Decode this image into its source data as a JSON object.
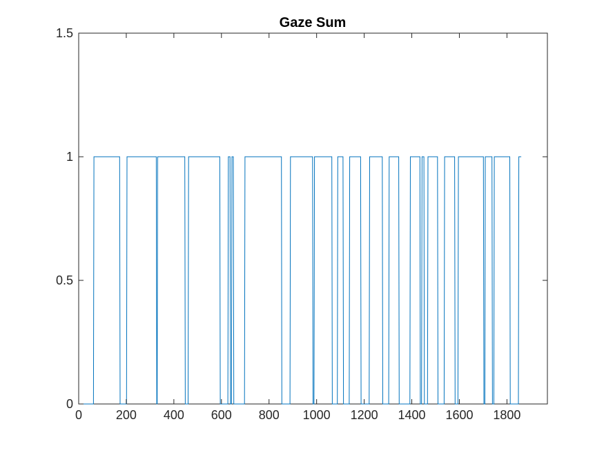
{
  "colors": {
    "background": "#ffffff",
    "axes": "#262626",
    "series": "#0072bd"
  },
  "chart_data": {
    "type": "line",
    "title": "Gaze Sum",
    "xlabel": "",
    "ylabel": "",
    "xlim": [
      0,
      1970
    ],
    "ylim": [
      0,
      1.5
    ],
    "xticks": [
      0,
      200,
      400,
      600,
      800,
      1000,
      1200,
      1400,
      1600,
      1800
    ],
    "xtick_labels": [
      "0",
      "200",
      "400",
      "600",
      "800",
      "1000",
      "1200",
      "1400",
      "1600",
      "1800"
    ],
    "yticks": [
      0,
      0.5,
      1,
      1.5
    ],
    "ytick_labels": [
      "0",
      "0.5",
      "1",
      "1.5"
    ],
    "grid": false,
    "legend": "none",
    "series": [
      {
        "interpolation": "linear",
        "x": [
          1,
          62,
          64,
          172,
          174,
          201,
          203,
          326,
          328,
          330,
          332,
          446,
          448,
          460,
          462,
          593,
          595,
          627,
          629,
          636,
          638,
          642,
          644,
          650,
          652,
          697,
          699,
          852,
          854,
          888,
          890,
          983,
          985,
          989,
          991,
          1064,
          1066,
          1087,
          1089,
          1111,
          1113,
          1137,
          1139,
          1185,
          1187,
          1221,
          1223,
          1276,
          1278,
          1303,
          1305,
          1345,
          1347,
          1392,
          1394,
          1434,
          1436,
          1441,
          1443,
          1451,
          1453,
          1466,
          1468,
          1508,
          1510,
          1536,
          1538,
          1580,
          1582,
          1594,
          1596,
          1701,
          1703,
          1707,
          1709,
          1737,
          1739,
          1745,
          1747,
          1812,
          1814,
          1848,
          1850,
          1860
        ],
        "y": [
          0,
          0,
          1,
          1,
          0,
          0,
          1,
          1,
          0,
          0,
          1,
          1,
          0,
          0,
          1,
          1,
          0,
          0,
          1,
          1,
          0,
          0,
          1,
          1,
          0,
          0,
          1,
          1,
          0,
          0,
          1,
          1,
          0,
          0,
          1,
          1,
          0,
          0,
          1,
          1,
          0,
          0,
          1,
          1,
          0,
          0,
          1,
          1,
          0,
          0,
          1,
          1,
          0,
          0,
          1,
          1,
          0,
          0,
          1,
          1,
          0,
          0,
          1,
          1,
          0,
          0,
          1,
          1,
          0,
          0,
          1,
          1,
          0,
          0,
          1,
          1,
          0,
          0,
          1,
          1,
          0,
          0,
          1,
          1
        ]
      }
    ]
  }
}
